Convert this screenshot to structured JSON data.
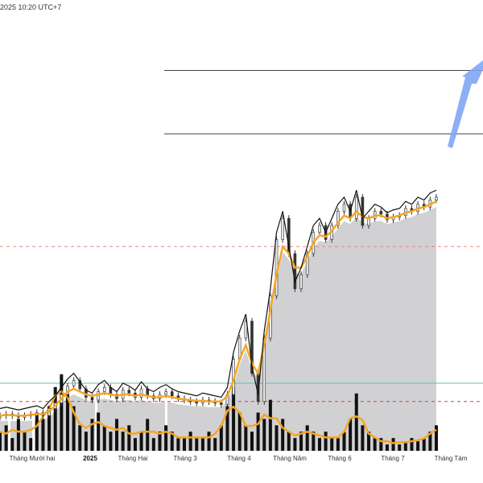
{
  "header": {
    "timestamp": "2025 10:20 UTC+7"
  },
  "chart_data": {
    "type": "candlestick",
    "x_ticks": [
      {
        "label": "Tháng Mười hai",
        "bold": false
      },
      {
        "label": "2025",
        "bold": true
      },
      {
        "label": "Tháng Hai",
        "bold": false
      },
      {
        "label": "Tháng 3",
        "bold": false
      },
      {
        "label": "Tháng 4",
        "bold": false
      },
      {
        "label": "Tháng Năm",
        "bold": false
      },
      {
        "label": "Tháng 6",
        "bold": false
      },
      {
        "label": "Tháng 7",
        "bold": false
      },
      {
        "label": "Tháng Tám",
        "bold": false
      }
    ],
    "price_series": [
      0.05,
      0.06,
      0.05,
      0.04,
      0.05,
      0.06,
      0.07,
      0.05,
      0.1,
      0.14,
      0.2,
      0.26,
      0.3,
      0.24,
      0.18,
      0.16,
      0.22,
      0.25,
      0.2,
      0.17,
      0.23,
      0.21,
      0.18,
      0.24,
      0.19,
      0.17,
      0.2,
      0.22,
      0.19,
      0.17,
      0.16,
      0.15,
      0.14,
      0.16,
      0.15,
      0.14,
      0.13,
      0.2,
      0.45,
      0.6,
      0.72,
      0.35,
      0.15,
      0.6,
      0.9,
      1.3,
      1.45,
      1.2,
      0.95,
      1.05,
      1.2,
      1.35,
      1.4,
      1.3,
      1.4,
      1.5,
      1.55,
      1.45,
      1.6,
      1.4,
      1.45,
      1.5,
      1.48,
      1.44,
      1.46,
      1.47,
      1.52,
      1.5,
      1.55,
      1.53,
      1.58,
      1.6
    ],
    "ma_series": [
      0.05,
      0.055,
      0.052,
      0.05,
      0.05,
      0.055,
      0.06,
      0.06,
      0.08,
      0.12,
      0.17,
      0.22,
      0.24,
      0.22,
      0.2,
      0.19,
      0.2,
      0.21,
      0.2,
      0.19,
      0.2,
      0.2,
      0.19,
      0.2,
      0.19,
      0.18,
      0.18,
      0.19,
      0.18,
      0.17,
      0.165,
      0.16,
      0.155,
      0.155,
      0.15,
      0.15,
      0.15,
      0.19,
      0.3,
      0.45,
      0.55,
      0.42,
      0.35,
      0.55,
      0.8,
      1.05,
      1.25,
      1.2,
      1.1,
      1.1,
      1.18,
      1.28,
      1.33,
      1.32,
      1.36,
      1.42,
      1.47,
      1.45,
      1.5,
      1.46,
      1.45,
      1.47,
      1.47,
      1.45,
      1.46,
      1.47,
      1.49,
      1.5,
      1.52,
      1.53,
      1.55,
      1.57
    ],
    "volume_series": [
      0.3,
      0.4,
      0.2,
      0.5,
      0.3,
      0.2,
      0.6,
      0.5,
      0.7,
      1.0,
      1.2,
      0.9,
      0.7,
      0.4,
      0.3,
      0.5,
      0.6,
      0.4,
      0.3,
      0.5,
      0.3,
      0.4,
      0.2,
      0.3,
      0.5,
      0.2,
      0.3,
      0.4,
      0.3,
      0.2,
      0.2,
      0.3,
      0.2,
      0.2,
      0.3,
      0.2,
      0.4,
      0.7,
      1.0,
      0.6,
      0.4,
      0.3,
      0.6,
      0.5,
      0.8,
      0.4,
      0.5,
      0.3,
      0.2,
      0.3,
      0.4,
      0.3,
      0.2,
      0.3,
      0.2,
      0.2,
      0.3,
      0.5,
      0.9,
      0.4,
      0.3,
      0.2,
      0.2,
      0.1,
      0.2,
      0.1,
      0.15,
      0.2,
      0.15,
      0.2,
      0.3,
      0.4
    ],
    "levels": [
      {
        "name": "upper-level-2",
        "value": 2.5,
        "style": "solid",
        "color": "#444444"
      },
      {
        "name": "upper-level-1",
        "value": 2.05,
        "style": "solid",
        "color": "#444444"
      },
      {
        "name": "mid-level",
        "value": 1.25,
        "style": "dashed",
        "color": "#f08080"
      },
      {
        "name": "green-level",
        "value": 0.28,
        "style": "solid",
        "color": "#5cc2a8"
      },
      {
        "name": "red-level",
        "value": 0.15,
        "style": "dashed",
        "color": "#d84040"
      }
    ],
    "colors": {
      "ma": "#f5a623",
      "zigzag": "#111111",
      "cloud": "#cfcfd2",
      "arrow": "#7fa6f5",
      "volume": "#111111"
    },
    "annotations": [
      {
        "type": "arrow-up",
        "color": "#7fa6f5"
      }
    ]
  }
}
